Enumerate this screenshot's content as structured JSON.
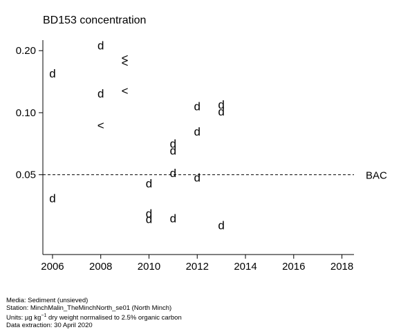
{
  "chart_data": {
    "type": "scatter",
    "title": "BD153 concentration",
    "xlabel": "",
    "ylabel": "",
    "x_scale": "linear",
    "y_scale": "log",
    "xlim": [
      2005.6,
      2018.5
    ],
    "ylim": [
      0.0205,
      0.225
    ],
    "x_ticks": [
      2006,
      2008,
      2010,
      2012,
      2014,
      2016,
      2018
    ],
    "y_ticks": [
      0.05,
      0.1,
      0.2
    ],
    "y_tick_labels": [
      "0.05",
      "0.10",
      "0.20"
    ],
    "grid": false,
    "series": [
      {
        "marker": "d",
        "points": [
          {
            "x": 2006,
            "y": 0.155
          },
          {
            "x": 2006,
            "y": 0.0385
          },
          {
            "x": 2008,
            "y": 0.212
          },
          {
            "x": 2008,
            "y": 0.124
          },
          {
            "x": 2010,
            "y": 0.0455
          },
          {
            "x": 2010,
            "y": 0.0325
          },
          {
            "x": 2010,
            "y": 0.0305
          },
          {
            "x": 2011,
            "y": 0.071
          },
          {
            "x": 2011,
            "y": 0.0655
          },
          {
            "x": 2011,
            "y": 0.051
          },
          {
            "x": 2011,
            "y": 0.0308
          },
          {
            "x": 2012,
            "y": 0.1075
          },
          {
            "x": 2012,
            "y": 0.081
          },
          {
            "x": 2012,
            "y": 0.0485
          },
          {
            "x": 2013,
            "y": 0.1095
          },
          {
            "x": 2013,
            "y": 0.1015
          },
          {
            "x": 2013,
            "y": 0.0285
          }
        ]
      },
      {
        "marker": "<",
        "points": [
          {
            "x": 2009,
            "y": 0.185
          },
          {
            "x": 2009,
            "y": 0.175
          },
          {
            "x": 2009,
            "y": 0.128
          },
          {
            "x": 2008,
            "y": 0.087
          }
        ]
      }
    ],
    "reference_line": {
      "y": 0.05,
      "label": "BAC",
      "style": "dashed"
    }
  },
  "footer": {
    "media": "Media: Sediment (unsieved)",
    "station": "Station: MinchMalin_TheMinchNorth_se01 (North Minch)",
    "units_prefix": "Units: µg kg",
    "units_sup": "−1",
    "units_suffix": " dry weight normalised to 2.5% organic carbon",
    "extraction": "Data extraction: 30 April 2020"
  }
}
